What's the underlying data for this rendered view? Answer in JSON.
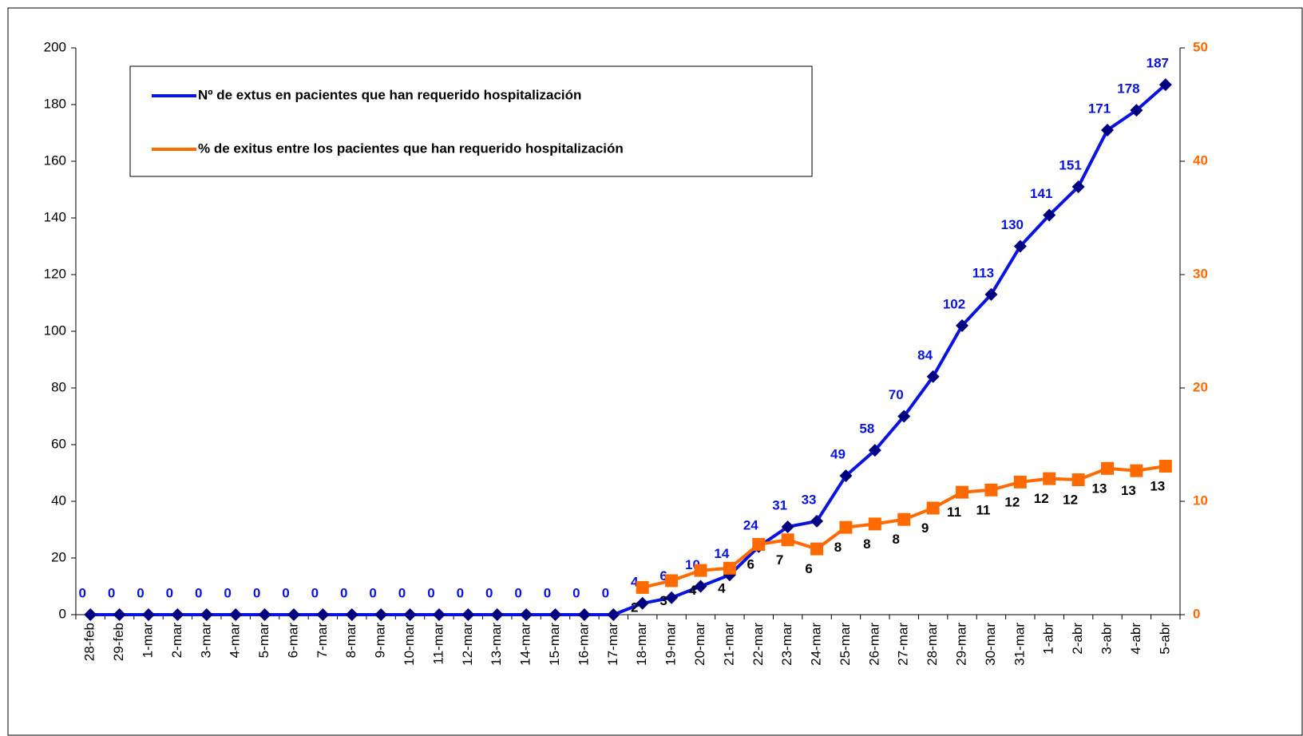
{
  "chart_data": {
    "type": "line",
    "categories": [
      "28-feb",
      "29-feb",
      "1-mar",
      "2-mar",
      "3-mar",
      "4-mar",
      "5-mar",
      "6-mar",
      "7-mar",
      "8-mar",
      "9-mar",
      "10-mar",
      "11-mar",
      "12-mar",
      "13-mar",
      "14-mar",
      "15-mar",
      "16-mar",
      "17-mar",
      "18-mar",
      "19-mar",
      "20-mar",
      "21-mar",
      "22-mar",
      "23-mar",
      "24-mar",
      "25-mar",
      "26-mar",
      "27-mar",
      "28-mar",
      "29-mar",
      "30-mar",
      "31-mar",
      "1-abr",
      "2-abr",
      "3-abr",
      "4-abr",
      "5-abr"
    ],
    "series": [
      {
        "name": "Nº de extus en pacientes que han requerido hospitalización",
        "color": "#0a14e0",
        "marker": "diamond",
        "marker_color": "#000080",
        "label_color": "#0a14e0",
        "label_position": "above",
        "values": [
          0,
          0,
          0,
          0,
          0,
          0,
          0,
          0,
          0,
          0,
          0,
          0,
          0,
          0,
          0,
          0,
          0,
          0,
          0,
          4,
          6,
          10,
          14,
          24,
          31,
          33,
          49,
          58,
          70,
          84,
          102,
          113,
          130,
          141,
          151,
          171,
          178,
          187
        ]
      },
      {
        "name": "% de exitus entre los pacientes que han requerido hospitalización",
        "color": "#ff6a00",
        "marker": "square",
        "marker_color": "#ff6a00",
        "label_color": "#000000",
        "label_position": "below",
        "axis": "y2",
        "values": [
          null,
          null,
          null,
          null,
          null,
          null,
          null,
          null,
          null,
          null,
          null,
          null,
          null,
          null,
          null,
          null,
          null,
          null,
          null,
          2.4,
          3,
          3.9,
          4.1,
          6.2,
          6.6,
          5.8,
          7.7,
          8,
          8.4,
          9.4,
          10.8,
          11,
          11.7,
          12,
          11.9,
          12.9,
          12.7,
          13.1
        ],
        "value_labels": [
          null,
          null,
          null,
          null,
          null,
          null,
          null,
          null,
          null,
          null,
          null,
          null,
          null,
          null,
          null,
          null,
          null,
          null,
          null,
          "2",
          "3",
          "4",
          "4",
          "6",
          "7",
          "6",
          "8",
          "8",
          "8",
          "9",
          "11",
          "11",
          "12",
          "12",
          "12",
          "13",
          "13",
          "13"
        ]
      }
    ],
    "ylim": [
      0,
      200
    ],
    "yticks": [
      0,
      20,
      40,
      60,
      80,
      100,
      120,
      140,
      160,
      180,
      200
    ],
    "y2lim": [
      0,
      50
    ],
    "y2ticks": [
      0,
      10,
      20,
      30,
      40,
      50
    ],
    "y2_color": "#ff6a00"
  }
}
